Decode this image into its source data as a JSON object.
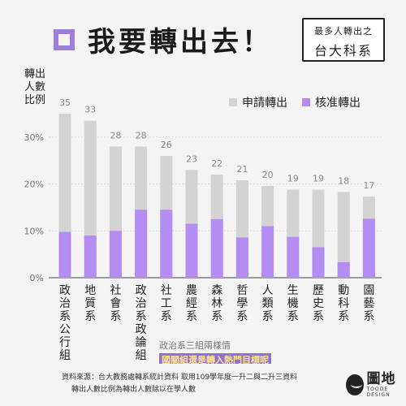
{
  "header": {
    "title": "我要轉出去！",
    "subtitle_line1": "最多人轉出之",
    "subtitle_line2": "台大科系"
  },
  "colors": {
    "applied": "#d3d3d3",
    "approved": "#b48cf2",
    "accent": "#9b7fd8",
    "highlight_bg": "#8f71d2",
    "highlight_text": "#ffe28a"
  },
  "chart_data": {
    "type": "bar",
    "title": "我要轉出去！",
    "ylabel": "轉出人數比例",
    "ylim": [
      0,
      40
    ],
    "yticks": [
      0,
      10,
      20,
      30
    ],
    "ytick_labels": [
      "0%",
      "10%",
      "20%",
      "30%"
    ],
    "grid": true,
    "legend_position": "top-right",
    "categories": [
      "政治系公行組",
      "地質系",
      "社會系",
      "政治系政論組",
      "社工系",
      "農經系",
      "森林系",
      "哲學系",
      "人類系",
      "生機系",
      "歷史系",
      "動科系",
      "園藝系"
    ],
    "counts": [
      35,
      33,
      28,
      28,
      26,
      23,
      22,
      21,
      20,
      19,
      19,
      18,
      17
    ],
    "series": [
      {
        "name": "申請轉出",
        "values": [
          35,
          33.5,
          28,
          28,
          26,
          23,
          22,
          20.8,
          19.6,
          18.8,
          18.8,
          18.3,
          17.3
        ]
      },
      {
        "name": "核准轉出",
        "values": [
          9.8,
          9,
          10,
          14.5,
          14.5,
          11.5,
          12.5,
          8.6,
          11,
          8.7,
          6.5,
          3.3,
          12.6
        ]
      }
    ],
    "annotation_line1": "政治系三組兩樣情",
    "annotation_line2": "國關組還是轉入熱門目標呢"
  },
  "footer": {
    "source_line1": "資料來源：台大教務處轉系統計資料  取用109學年度一升二與二升三資料",
    "source_line2": "轉出人數比例為轉出人數除以在學人數",
    "logo_main": "圖地",
    "logo_sub": "TOODE DESIGN"
  }
}
